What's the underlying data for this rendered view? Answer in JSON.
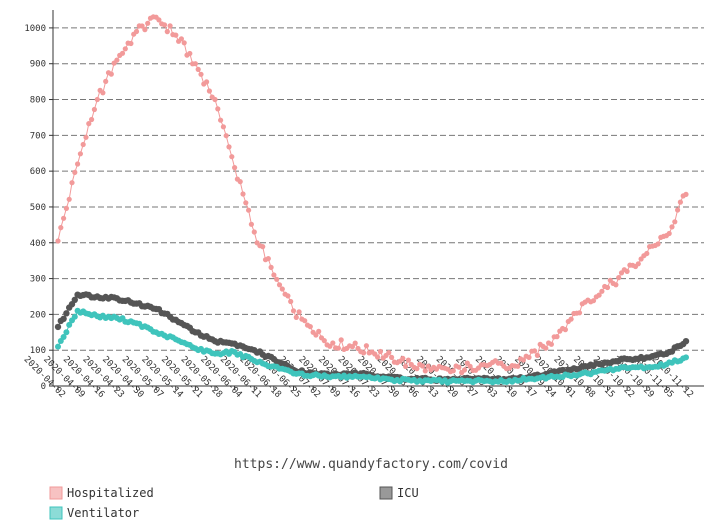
{
  "chart_data": {
    "type": "line",
    "caption": "https://www.quandyfactory.com/covid",
    "x_ticks": [
      "2020-04-02",
      "2020-04-09",
      "2020-04-16",
      "2020-04-23",
      "2020-04-30",
      "2020-05-07",
      "2020-05-14",
      "2020-05-21",
      "2020-05-28",
      "2020-06-04",
      "2020-06-11",
      "2020-06-18",
      "2020-06-25",
      "2020-07-02",
      "2020-07-09",
      "2020-07-16",
      "2020-07-23",
      "2020-07-30",
      "2020-08-06",
      "2020-08-13",
      "2020-08-20",
      "2020-08-27",
      "2020-09-03",
      "2020-09-10",
      "2020-09-17",
      "2020-09-24",
      "2020-10-01",
      "2020-10-08",
      "2020-10-15",
      "2020-10-22",
      "2020-10-29",
      "2020-11-05",
      "2020-11-12"
    ],
    "y_ticks": [
      0,
      100,
      200,
      300,
      400,
      500,
      600,
      700,
      800,
      900,
      1000
    ],
    "ylim": [
      0,
      1050
    ],
    "grid": "horizontal dashed",
    "legend_position": "bottom",
    "series": [
      {
        "name": "Hospitalized",
        "color": "#f29a9a",
        "x": [
          "2020-04-02",
          "2020-04-09",
          "2020-04-16",
          "2020-04-23",
          "2020-04-30",
          "2020-05-07",
          "2020-05-14",
          "2020-05-21",
          "2020-05-28",
          "2020-06-04",
          "2020-06-11",
          "2020-06-18",
          "2020-06-25",
          "2020-07-02",
          "2020-07-09",
          "2020-07-16",
          "2020-07-23",
          "2020-07-30",
          "2020-08-06",
          "2020-08-13",
          "2020-08-20",
          "2020-08-27",
          "2020-09-03",
          "2020-09-10",
          "2020-09-17",
          "2020-09-24",
          "2020-10-01",
          "2020-10-08",
          "2020-10-15",
          "2020-10-22",
          "2020-10-29",
          "2020-11-05",
          "2020-11-12"
        ],
        "values": [
          405,
          620,
          800,
          910,
          990,
          1030,
          980,
          900,
          800,
          610,
          430,
          310,
          210,
          150,
          120,
          110,
          95,
          80,
          60,
          45,
          40,
          55,
          60,
          50,
          80,
          120,
          180,
          240,
          275,
          320,
          370,
          420,
          535
        ]
      },
      {
        "name": "ICU",
        "color": "#555555",
        "x": [
          "2020-04-02",
          "2020-04-09",
          "2020-04-16",
          "2020-04-23",
          "2020-04-30",
          "2020-05-07",
          "2020-05-14",
          "2020-05-21",
          "2020-05-28",
          "2020-06-04",
          "2020-06-11",
          "2020-06-18",
          "2020-06-25",
          "2020-07-02",
          "2020-07-09",
          "2020-07-16",
          "2020-07-23",
          "2020-07-30",
          "2020-08-06",
          "2020-08-13",
          "2020-08-20",
          "2020-08-27",
          "2020-09-03",
          "2020-09-10",
          "2020-09-17",
          "2020-09-24",
          "2020-10-01",
          "2020-10-08",
          "2020-10-15",
          "2020-10-22",
          "2020-10-29",
          "2020-11-05",
          "2020-11-12"
        ],
        "values": [
          165,
          255,
          250,
          245,
          230,
          215,
          185,
          150,
          125,
          118,
          100,
          75,
          45,
          35,
          32,
          35,
          30,
          25,
          20,
          18,
          17,
          20,
          18,
          20,
          25,
          35,
          45,
          55,
          65,
          75,
          80,
          90,
          125
        ]
      },
      {
        "name": "Ventilator",
        "color": "#3fc4bc",
        "x": [
          "2020-04-02",
          "2020-04-09",
          "2020-04-16",
          "2020-04-23",
          "2020-04-30",
          "2020-05-07",
          "2020-05-14",
          "2020-05-21",
          "2020-05-28",
          "2020-06-04",
          "2020-06-11",
          "2020-06-18",
          "2020-06-25",
          "2020-07-02",
          "2020-07-09",
          "2020-07-16",
          "2020-07-23",
          "2020-07-30",
          "2020-08-06",
          "2020-08-13",
          "2020-08-20",
          "2020-08-27",
          "2020-09-03",
          "2020-09-10",
          "2020-09-17",
          "2020-09-24",
          "2020-10-01",
          "2020-10-08",
          "2020-10-15",
          "2020-10-22",
          "2020-10-29",
          "2020-11-05",
          "2020-11-12"
        ],
        "values": [
          110,
          210,
          195,
          190,
          175,
          150,
          130,
          105,
          90,
          95,
          70,
          55,
          35,
          30,
          27,
          25,
          22,
          18,
          15,
          14,
          13,
          14,
          13,
          15,
          20,
          25,
          30,
          35,
          45,
          50,
          52,
          60,
          80
        ]
      }
    ]
  }
}
